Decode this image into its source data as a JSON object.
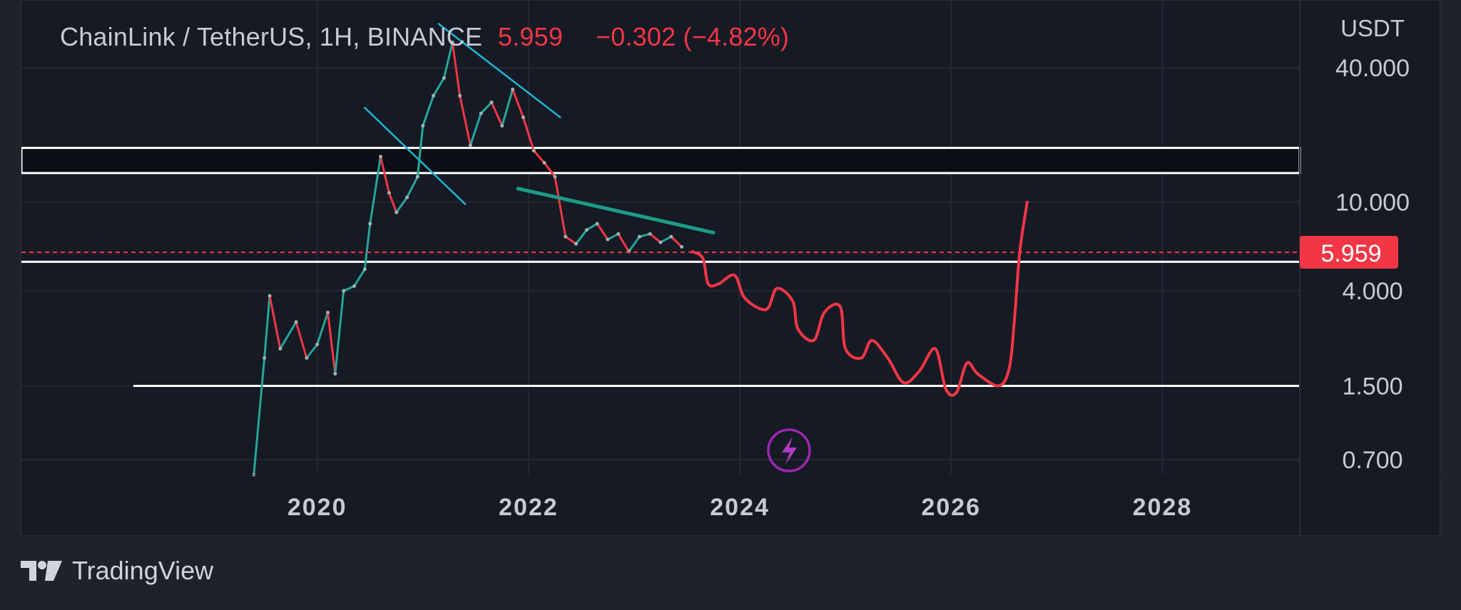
{
  "header": {
    "symbol": "ChainLink / TetherUS, 1H, BINANCE",
    "price": "5.959",
    "change": "−0.302 (−4.82%)"
  },
  "footer": {
    "brand": "TradingView",
    "logo_icon": "tradingview-logo-icon"
  },
  "colors": {
    "background": "#161a25",
    "up": "#26a69a",
    "down": "#f23645",
    "projection": "#f23645",
    "trendline_cyan": "#1fb6d2",
    "trendline_teal": "#1b9c88",
    "level": "#ffffff",
    "text": "#c7cad3"
  },
  "chart_data": {
    "type": "line",
    "title": "ChainLink / TetherUS, 1H, BINANCE",
    "y_scale": "log",
    "y_unit": "USDT",
    "ylim": [
      0.6,
      80
    ],
    "xlim": [
      2017.2,
      2029.3
    ],
    "x_ticks": [
      "2020",
      "2022",
      "2024",
      "2026",
      "2028"
    ],
    "y_ticks": [
      "40.000",
      "10.000",
      "4.000",
      "1.500",
      "0.700"
    ],
    "last_price": 5.959,
    "last_price_label": "5.959",
    "grid": true,
    "series": [
      {
        "kind": "price-history",
        "x": [
          2019.4,
          2019.5,
          2019.55,
          2019.65,
          2019.8,
          2019.9,
          2020.0,
          2020.1,
          2020.17,
          2020.25,
          2020.35,
          2020.45,
          2020.5,
          2020.6,
          2020.68,
          2020.75,
          2020.85,
          2020.95,
          2021.0,
          2021.1,
          2021.2,
          2021.28,
          2021.35,
          2021.45,
          2021.55,
          2021.65,
          2021.75,
          2021.85,
          2021.95,
          2022.05,
          2022.15,
          2022.25,
          2022.35,
          2022.45,
          2022.55,
          2022.65,
          2022.75,
          2022.85,
          2022.95,
          2023.05,
          2023.15,
          2023.25,
          2023.35,
          2023.45
        ],
        "y": [
          0.6,
          2.0,
          3.8,
          2.2,
          2.9,
          2.0,
          2.3,
          3.2,
          1.7,
          4.0,
          4.2,
          5.0,
          8.0,
          16.0,
          11.0,
          9.0,
          10.5,
          13.0,
          22.0,
          30.0,
          36.0,
          52.0,
          30.0,
          18.0,
          25.0,
          28.0,
          22.0,
          32.0,
          24.0,
          17.0,
          15.0,
          13.0,
          7.0,
          6.5,
          7.5,
          8.0,
          6.8,
          7.2,
          6.0,
          7.0,
          7.2,
          6.6,
          7.0,
          6.3
        ]
      },
      {
        "kind": "projection",
        "x": [
          2023.55,
          2023.65,
          2023.7,
          2023.8,
          2023.95,
          2024.05,
          2024.25,
          2024.35,
          2024.5,
          2024.55,
          2024.7,
          2024.8,
          2024.95,
          2025.0,
          2025.15,
          2025.25,
          2025.4,
          2025.55,
          2025.7,
          2025.85,
          2025.95,
          2026.05,
          2026.15,
          2026.25,
          2026.45,
          2026.55,
          2026.6,
          2026.65,
          2026.72
        ],
        "y": [
          6.0,
          5.6,
          4.3,
          4.3,
          4.7,
          3.7,
          3.3,
          4.1,
          3.6,
          2.7,
          2.4,
          3.2,
          3.4,
          2.2,
          2.0,
          2.4,
          2.0,
          1.55,
          1.75,
          2.2,
          1.45,
          1.4,
          1.9,
          1.7,
          1.5,
          1.8,
          3.0,
          6.0,
          10.0
        ]
      }
    ],
    "levels": [
      {
        "kind": "zone",
        "y_top": 17.5,
        "y_bottom": 13.5
      },
      {
        "kind": "line",
        "y": 5.4
      },
      {
        "kind": "line",
        "y": 1.5
      }
    ],
    "trendlines": [
      {
        "color": "cyan",
        "x": [
          2021.15,
          2022.3
        ],
        "y": [
          63.0,
          24.0
        ]
      },
      {
        "color": "cyan",
        "x": [
          2020.45,
          2021.4
        ],
        "y": [
          26.5,
          9.8
        ]
      },
      {
        "color": "teal",
        "x": [
          2021.9,
          2023.75
        ],
        "y": [
          11.5,
          7.3
        ]
      }
    ],
    "price_scale_label": "USDT"
  }
}
